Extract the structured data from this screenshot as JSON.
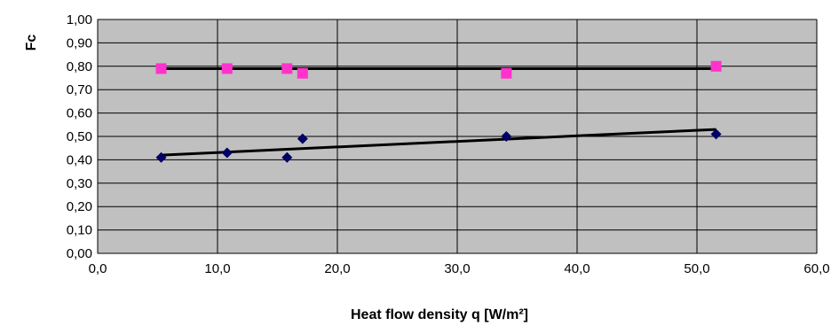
{
  "chart_data": {
    "type": "scatter",
    "title": "",
    "xlabel": "Heat flow density q [W/m²]",
    "ylabel": "Fc",
    "xlim": [
      0,
      60
    ],
    "ylim": [
      0,
      1
    ],
    "x_ticks": [
      "0,0",
      "10,0",
      "20,0",
      "30,0",
      "40,0",
      "50,0",
      "60,0"
    ],
    "y_ticks": [
      "0,00",
      "0,10",
      "0,20",
      "0,30",
      "0,40",
      "0,50",
      "0,60",
      "0,70",
      "0,80",
      "0,90",
      "1,00"
    ],
    "grid": true,
    "legend": "none",
    "series": [
      {
        "marker": "square",
        "color": "#ff33cc",
        "x": [
          5.3,
          10.8,
          15.8,
          17.1,
          34.1,
          51.6
        ],
        "y": [
          0.79,
          0.79,
          0.79,
          0.77,
          0.77,
          0.8
        ]
      },
      {
        "marker": "diamond",
        "color": "#000066",
        "x": [
          5.3,
          10.8,
          15.8,
          17.1,
          34.1,
          51.6
        ],
        "y": [
          0.41,
          0.43,
          0.41,
          0.49,
          0.5,
          0.51
        ]
      }
    ],
    "trendlines": [
      {
        "x": [
          5.3,
          51.6
        ],
        "y": [
          0.79,
          0.79
        ],
        "color": "#000000"
      },
      {
        "x": [
          5.3,
          51.6
        ],
        "y": [
          0.42,
          0.53
        ],
        "color": "#000000"
      }
    ],
    "plot_background": "#c0c0c0"
  }
}
